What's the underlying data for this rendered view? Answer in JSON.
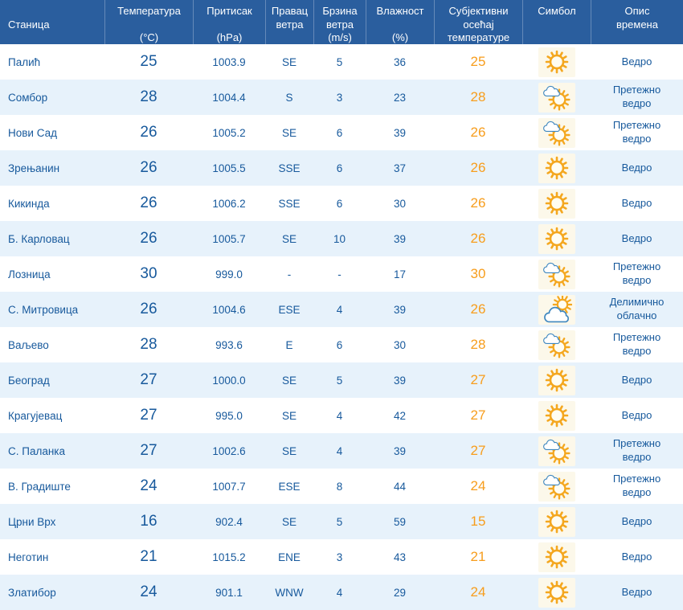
{
  "page": {
    "title": "Преглед метеоролошких података по станицама"
  },
  "colors": {
    "header_bg": "#2a5e9e",
    "row_alt_bg": "#e7f2fb",
    "text_blue": "#17599c",
    "feels_orange": "#f79d1c",
    "sun_orange": "#f4a71f",
    "cloud_stroke": "#3f87bf",
    "symbol_box_bg": "#fcf8ea"
  },
  "table": {
    "columns": [
      {
        "id": "station",
        "valign": "center",
        "lines": [
          "Станица"
        ]
      },
      {
        "id": "temp",
        "valign": "between",
        "lines": [
          "Температура",
          "(°C)"
        ]
      },
      {
        "id": "pressure",
        "valign": "between",
        "lines": [
          "Притисак",
          "(hPa)"
        ]
      },
      {
        "id": "wind-dir",
        "valign": "top",
        "lines": [
          "Правац",
          "ветра"
        ]
      },
      {
        "id": "wind-speed",
        "valign": "top",
        "lines": [
          "Брзина",
          "ветра",
          "(m/s)"
        ]
      },
      {
        "id": "humidity",
        "valign": "between",
        "lines": [
          "Влажност",
          "(%)"
        ]
      },
      {
        "id": "feels",
        "valign": "top",
        "lines": [
          "Субјективни",
          "осећај",
          "температуре"
        ]
      },
      {
        "id": "symbol",
        "valign": "top",
        "lines": [
          "Симбол"
        ]
      },
      {
        "id": "desc",
        "valign": "top",
        "lines": [
          "Опис",
          "времена"
        ]
      }
    ],
    "rows": [
      {
        "station": "Палић",
        "temperature": "25",
        "pressure": "1003.9",
        "wind_direction": "SE",
        "wind_speed": "5",
        "humidity": "36",
        "feels_like": "25",
        "symbol": "sun-icon",
        "description": "Ведро"
      },
      {
        "station": "Сомбор",
        "temperature": "28",
        "pressure": "1004.4",
        "wind_direction": "S",
        "wind_speed": "3",
        "humidity": "23",
        "feels_like": "28",
        "symbol": "sun-small-cloud-icon",
        "description": "Претежно ведро"
      },
      {
        "station": "Нови Сад",
        "temperature": "26",
        "pressure": "1005.2",
        "wind_direction": "SE",
        "wind_speed": "6",
        "humidity": "39",
        "feels_like": "26",
        "symbol": "sun-small-cloud-icon",
        "description": "Претежно ведро"
      },
      {
        "station": "Зрењанин",
        "temperature": "26",
        "pressure": "1005.5",
        "wind_direction": "SSE",
        "wind_speed": "6",
        "humidity": "37",
        "feels_like": "26",
        "symbol": "sun-icon",
        "description": "Ведро"
      },
      {
        "station": "Кикинда",
        "temperature": "26",
        "pressure": "1006.2",
        "wind_direction": "SSE",
        "wind_speed": "6",
        "humidity": "30",
        "feels_like": "26",
        "symbol": "sun-icon",
        "description": "Ведро"
      },
      {
        "station": "Б. Карловац",
        "temperature": "26",
        "pressure": "1005.7",
        "wind_direction": "SE",
        "wind_speed": "10",
        "humidity": "39",
        "feels_like": "26",
        "symbol": "sun-icon",
        "description": "Ведро"
      },
      {
        "station": "Лозница",
        "temperature": "30",
        "pressure": "999.0",
        "wind_direction": "-",
        "wind_speed": "-",
        "humidity": "17",
        "feels_like": "30",
        "symbol": "sun-small-cloud-icon",
        "description": "Претежно ведро"
      },
      {
        "station": "С. Митровица",
        "temperature": "26",
        "pressure": "1004.6",
        "wind_direction": "ESE",
        "wind_speed": "4",
        "humidity": "39",
        "feels_like": "26",
        "symbol": "cloud-sun-icon",
        "description": "Делимично облачно"
      },
      {
        "station": "Ваљево",
        "temperature": "28",
        "pressure": "993.6",
        "wind_direction": "E",
        "wind_speed": "6",
        "humidity": "30",
        "feels_like": "28",
        "symbol": "sun-small-cloud-icon",
        "description": "Претежно ведро"
      },
      {
        "station": "Београд",
        "temperature": "27",
        "pressure": "1000.0",
        "wind_direction": "SE",
        "wind_speed": "5",
        "humidity": "39",
        "feels_like": "27",
        "symbol": "sun-icon",
        "description": "Ведро"
      },
      {
        "station": "Крагујевац",
        "temperature": "27",
        "pressure": "995.0",
        "wind_direction": "SE",
        "wind_speed": "4",
        "humidity": "42",
        "feels_like": "27",
        "symbol": "sun-icon",
        "description": "Ведро"
      },
      {
        "station": "С. Паланка",
        "temperature": "27",
        "pressure": "1002.6",
        "wind_direction": "SE",
        "wind_speed": "4",
        "humidity": "39",
        "feels_like": "27",
        "symbol": "sun-small-cloud-icon",
        "description": "Претежно ведро"
      },
      {
        "station": "В. Градиште",
        "temperature": "24",
        "pressure": "1007.7",
        "wind_direction": "ESE",
        "wind_speed": "8",
        "humidity": "44",
        "feels_like": "24",
        "symbol": "sun-small-cloud-icon",
        "description": "Претежно ведро"
      },
      {
        "station": "Црни Врх",
        "temperature": "16",
        "pressure": "902.4",
        "wind_direction": "SE",
        "wind_speed": "5",
        "humidity": "59",
        "feels_like": "15",
        "symbol": "sun-icon",
        "description": "Ведро"
      },
      {
        "station": "Неготин",
        "temperature": "21",
        "pressure": "1015.2",
        "wind_direction": "ENE",
        "wind_speed": "3",
        "humidity": "43",
        "feels_like": "21",
        "symbol": "sun-icon",
        "description": "Ведро"
      },
      {
        "station": "Златибор",
        "temperature": "24",
        "pressure": "901.1",
        "wind_direction": "WNW",
        "wind_speed": "4",
        "humidity": "29",
        "feels_like": "24",
        "symbol": "sun-icon",
        "description": "Ведро"
      }
    ]
  }
}
